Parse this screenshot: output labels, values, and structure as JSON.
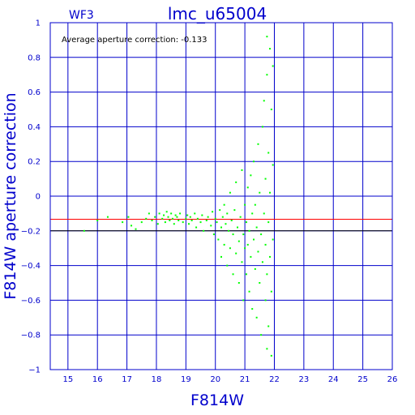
{
  "chart_data": {
    "type": "scatter",
    "title": "lmc_u65004",
    "subtitle": "WF3",
    "annotation": "Average aperture correction: -0.133",
    "xlabel": "F814W",
    "ylabel": "F814W aperture correction",
    "xlim": [
      14.4,
      26
    ],
    "ylim": [
      -1,
      1
    ],
    "xticks": [
      15,
      16,
      17,
      18,
      19,
      20,
      21,
      22,
      23,
      24,
      25,
      26
    ],
    "yticks": [
      -1,
      -0.8,
      -0.6,
      -0.4,
      -0.2,
      0,
      0.2,
      0.4,
      0.6,
      0.8,
      1
    ],
    "xtick_labels": [
      "15",
      "16",
      "17",
      "18",
      "19",
      "20",
      "21",
      "22",
      "23",
      "24",
      "25",
      "26"
    ],
    "ytick_labels": [
      "−1",
      "−0.8",
      "−0.6",
      "−0.4",
      "−0.2",
      "0",
      "0.2",
      "0.4",
      "0.6",
      "0.8",
      "1"
    ],
    "grid": true,
    "average_line_y": -0.133,
    "reference_line_y": -0.2,
    "colors": {
      "points": "#00ff00",
      "axes": "#0000cc",
      "average_line": "#ff0000",
      "reference_line": "#000000",
      "background": "#ffffff"
    },
    "points": [
      [
        15.55,
        -0.2
      ],
      [
        16.0,
        -0.14
      ],
      [
        16.35,
        -0.12
      ],
      [
        16.85,
        -0.15
      ],
      [
        17.05,
        -0.12
      ],
      [
        17.15,
        -0.17
      ],
      [
        17.3,
        -0.19
      ],
      [
        17.5,
        -0.15
      ],
      [
        17.65,
        -0.13
      ],
      [
        17.75,
        -0.1
      ],
      [
        17.85,
        -0.14
      ],
      [
        17.95,
        -0.12
      ],
      [
        18.05,
        -0.16
      ],
      [
        18.1,
        -0.1
      ],
      [
        18.2,
        -0.13
      ],
      [
        18.25,
        -0.11
      ],
      [
        18.3,
        -0.15
      ],
      [
        18.35,
        -0.09
      ],
      [
        18.4,
        -0.12
      ],
      [
        18.45,
        -0.14
      ],
      [
        18.5,
        -0.1
      ],
      [
        18.55,
        -0.13
      ],
      [
        18.6,
        -0.16
      ],
      [
        18.65,
        -0.11
      ],
      [
        18.7,
        -0.12
      ],
      [
        18.75,
        -0.14
      ],
      [
        18.8,
        -0.1
      ],
      [
        18.9,
        -0.15
      ],
      [
        19.0,
        -0.13
      ],
      [
        19.05,
        -0.11
      ],
      [
        19.1,
        -0.16
      ],
      [
        19.15,
        -0.12
      ],
      [
        19.2,
        -0.14
      ],
      [
        19.3,
        -0.1
      ],
      [
        19.35,
        -0.18
      ],
      [
        19.4,
        -0.13
      ],
      [
        19.5,
        -0.15
      ],
      [
        19.55,
        -0.11
      ],
      [
        19.6,
        -0.2
      ],
      [
        19.7,
        -0.14
      ],
      [
        19.75,
        -0.12
      ],
      [
        19.85,
        -0.17
      ],
      [
        19.9,
        -0.09
      ],
      [
        19.95,
        -0.22
      ],
      [
        20.0,
        -0.13
      ],
      [
        20.05,
        -0.15
      ],
      [
        20.1,
        -0.25
      ],
      [
        20.15,
        -0.08
      ],
      [
        20.2,
        -0.18
      ],
      [
        20.2,
        -0.35
      ],
      [
        20.25,
        -0.12
      ],
      [
        20.3,
        -0.05
      ],
      [
        20.3,
        -0.28
      ],
      [
        20.35,
        -0.16
      ],
      [
        20.4,
        -0.4
      ],
      [
        20.4,
        -0.1
      ],
      [
        20.45,
        -0.2
      ],
      [
        20.5,
        0.02
      ],
      [
        20.5,
        -0.3
      ],
      [
        20.55,
        -0.14
      ],
      [
        20.6,
        -0.45
      ],
      [
        20.6,
        -0.22
      ],
      [
        20.65,
        -0.08
      ],
      [
        20.7,
        0.08
      ],
      [
        20.7,
        -0.33
      ],
      [
        20.75,
        -0.18
      ],
      [
        20.8,
        -0.5
      ],
      [
        20.8,
        -0.26
      ],
      [
        20.85,
        -0.12
      ],
      [
        20.9,
        0.15
      ],
      [
        20.9,
        -0.38
      ],
      [
        20.95,
        -0.6
      ],
      [
        20.95,
        -0.22
      ],
      [
        21.0,
        -0.05
      ],
      [
        21.0,
        -0.3
      ],
      [
        21.05,
        -0.45
      ],
      [
        21.05,
        -0.15
      ],
      [
        21.1,
        0.05
      ],
      [
        21.1,
        -0.28
      ],
      [
        21.15,
        -0.55
      ],
      [
        21.15,
        -0.2
      ],
      [
        21.2,
        0.12
      ],
      [
        21.2,
        -0.35
      ],
      [
        21.25,
        -0.1
      ],
      [
        21.25,
        -0.65
      ],
      [
        21.3,
        -0.25
      ],
      [
        21.3,
        0.2
      ],
      [
        21.35,
        -0.42
      ],
      [
        21.35,
        -0.05
      ],
      [
        21.4,
        -0.7
      ],
      [
        21.4,
        -0.18
      ],
      [
        21.45,
        0.3
      ],
      [
        21.45,
        -0.32
      ],
      [
        21.5,
        -0.5
      ],
      [
        21.5,
        0.02
      ],
      [
        21.55,
        -0.8
      ],
      [
        21.55,
        -0.22
      ],
      [
        21.6,
        0.4
      ],
      [
        21.6,
        -0.38
      ],
      [
        21.65,
        -0.1
      ],
      [
        21.65,
        0.55
      ],
      [
        21.7,
        -0.6
      ],
      [
        21.7,
        -0.28
      ],
      [
        21.7,
        0.1
      ],
      [
        21.75,
        0.7
      ],
      [
        21.75,
        -0.45
      ],
      [
        21.75,
        -0.88
      ],
      [
        21.8,
        0.25
      ],
      [
        21.8,
        -0.15
      ],
      [
        21.8,
        -0.75
      ],
      [
        21.85,
        0.85
      ],
      [
        21.85,
        -0.35
      ],
      [
        21.85,
        0.02
      ],
      [
        21.9,
        0.5
      ],
      [
        21.9,
        -0.55
      ],
      [
        21.9,
        -0.92
      ],
      [
        21.95,
        0.75
      ],
      [
        21.95,
        -0.25
      ],
      [
        21.95,
        0.18
      ],
      [
        21.75,
        0.92
      ]
    ]
  }
}
